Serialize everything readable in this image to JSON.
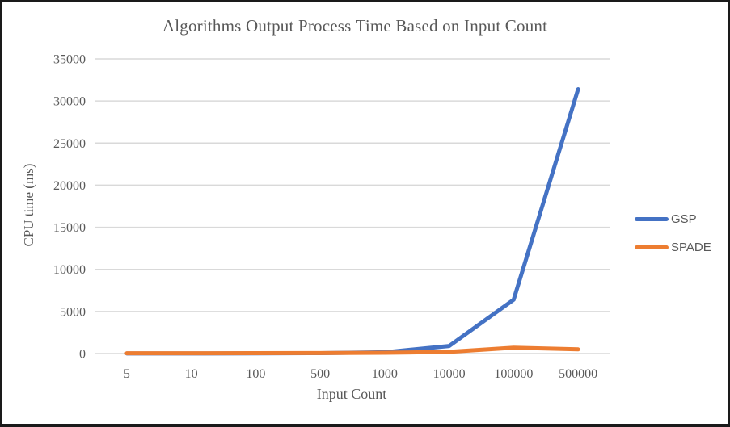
{
  "page": {
    "background": "#FFFFFF",
    "frame_color": "#1A1A1A"
  },
  "chart_data": {
    "type": "line",
    "title": "Algorithms Output Process Time Based on Input Count",
    "xlabel": "Input Count",
    "ylabel": "CPU time (ms)",
    "categories": [
      "5",
      "10",
      "100",
      "500",
      "1000",
      "10000",
      "100000",
      "500000"
    ],
    "series": [
      {
        "name": "GSP",
        "color": "#4472C4",
        "values": [
          10,
          12,
          20,
          50,
          150,
          900,
          6400,
          31400
        ]
      },
      {
        "name": "SPADE",
        "color": "#ED7D31",
        "values": [
          30,
          35,
          45,
          60,
          90,
          200,
          700,
          500
        ]
      }
    ],
    "ylim": [
      0,
      35000
    ],
    "yticks": [
      0,
      5000,
      10000,
      15000,
      20000,
      25000,
      30000,
      35000
    ],
    "grid": true,
    "legend_position": "right",
    "text_color": "#595959",
    "gridline_color": "#D9D9D9"
  }
}
